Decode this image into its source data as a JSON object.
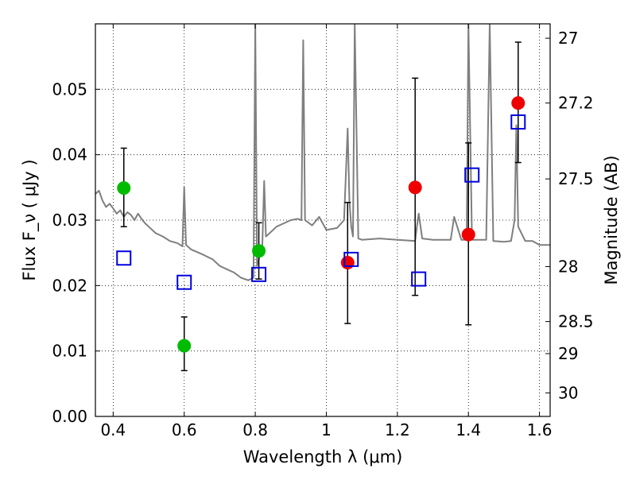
{
  "chart_data": {
    "type": "scatter",
    "xlabel": "Wavelength  λ (μm)",
    "ylabel": "Flux  F_ν  ( μJy )",
    "ylabel_right": "Magnitude (AB)",
    "xlim": [
      0.35,
      1.63
    ],
    "ylim": [
      0.0,
      0.06
    ],
    "grid": true,
    "x_ticks": [
      0.4,
      0.6,
      0.8,
      1.0,
      1.2,
      1.4,
      1.6
    ],
    "x_tick_labels": [
      "0.4",
      "0.6",
      "0.8",
      "1",
      "1.2",
      "1.4",
      "1.6"
    ],
    "y_ticks": [
      0.0,
      0.01,
      0.02,
      0.03,
      0.04,
      0.05
    ],
    "y_tick_labels": [
      "0.00",
      "0.01",
      "0.02",
      "0.03",
      "0.04",
      "0.05"
    ],
    "right_ticks": [
      {
        "label": "27",
        "flux": 0.0578
      },
      {
        "label": "27.2",
        "flux": 0.0479
      },
      {
        "label": "27.5",
        "flux": 0.0363
      },
      {
        "label": "28",
        "flux": 0.0229
      },
      {
        "label": "28.5",
        "flux": 0.0145
      },
      {
        "label": "29",
        "flux": 0.0096
      },
      {
        "label": "30",
        "flux": 0.0036
      }
    ],
    "colors": {
      "model": "#7f7f7f",
      "green_points": "#00bb00",
      "red_points": "#ee0000",
      "model_boxes": "#0000dd",
      "error_bars": "#000000"
    },
    "series": [
      {
        "x": [
          0.35,
          0.36,
          0.37,
          0.38,
          0.39,
          0.4,
          0.41,
          0.42,
          0.43,
          0.44,
          0.45,
          0.46,
          0.47,
          0.48,
          0.49,
          0.5,
          0.52,
          0.54,
          0.56,
          0.58,
          0.595,
          0.6,
          0.605,
          0.62,
          0.65,
          0.68,
          0.7,
          0.72,
          0.74,
          0.76,
          0.78,
          0.795,
          0.8,
          0.805,
          0.81,
          0.815,
          0.82,
          0.825,
          0.83,
          0.84,
          0.86,
          0.88,
          0.9,
          0.92,
          0.93,
          0.935,
          0.94,
          0.96,
          0.98,
          1.0,
          1.03,
          1.05,
          1.06,
          1.065,
          1.07,
          1.075,
          1.08,
          1.09,
          1.1,
          1.15,
          1.2,
          1.25,
          1.255,
          1.26,
          1.27,
          1.3,
          1.34,
          1.35,
          1.36,
          1.38,
          1.395,
          1.4,
          1.41,
          1.43,
          1.45,
          1.46,
          1.47,
          1.5,
          1.52,
          1.53,
          1.535,
          1.54,
          1.56,
          1.58,
          1.6,
          1.63
        ],
        "y": [
          0.034,
          0.0345,
          0.033,
          0.032,
          0.0325,
          0.0318,
          0.031,
          0.0315,
          0.0305,
          0.0312,
          0.0308,
          0.03,
          0.031,
          0.0302,
          0.0295,
          0.029,
          0.028,
          0.0275,
          0.0268,
          0.0265,
          0.026,
          0.035,
          0.0262,
          0.0255,
          0.0248,
          0.024,
          0.023,
          0.0225,
          0.022,
          0.0212,
          0.0208,
          0.0212,
          0.06,
          0.023,
          0.024,
          0.0255,
          0.0262,
          0.036,
          0.0275,
          0.028,
          0.029,
          0.0295,
          0.03,
          0.0302,
          0.03,
          0.0575,
          0.03,
          0.0292,
          0.0305,
          0.0285,
          0.0288,
          0.03,
          0.044,
          0.033,
          0.029,
          0.0275,
          0.06,
          0.0272,
          0.027,
          0.0272,
          0.027,
          0.0268,
          0.029,
          0.031,
          0.0272,
          0.027,
          0.027,
          0.027,
          0.0305,
          0.027,
          0.027,
          0.06,
          0.027,
          0.027,
          0.027,
          0.06,
          0.0268,
          0.0267,
          0.0268,
          0.03,
          0.0445,
          0.029,
          0.0268,
          0.0268,
          0.0262,
          0.0262
        ]
      },
      {
        "x": [
          0.43,
          0.6,
          0.81
        ],
        "y": [
          0.0349,
          0.0108,
          0.0253
        ],
        "yerr_low": [
          0.029,
          0.007,
          0.021
        ],
        "yerr_high": [
          0.041,
          0.0152,
          0.0296
        ]
      },
      {
        "x": [
          1.06,
          1.25,
          1.4,
          1.54
        ],
        "y": [
          0.0235,
          0.035,
          0.0278,
          0.0479
        ],
        "yerr_low": [
          0.0142,
          0.0185,
          0.014,
          0.0388
        ],
        "yerr_high": [
          0.0327,
          0.0517,
          0.0418,
          0.0572
        ]
      },
      {
        "x": [
          0.43,
          0.6,
          0.81,
          1.07,
          1.26,
          1.41,
          1.54
        ],
        "y": [
          0.0242,
          0.0205,
          0.0217,
          0.024,
          0.021,
          0.0369,
          0.045
        ]
      }
    ]
  }
}
